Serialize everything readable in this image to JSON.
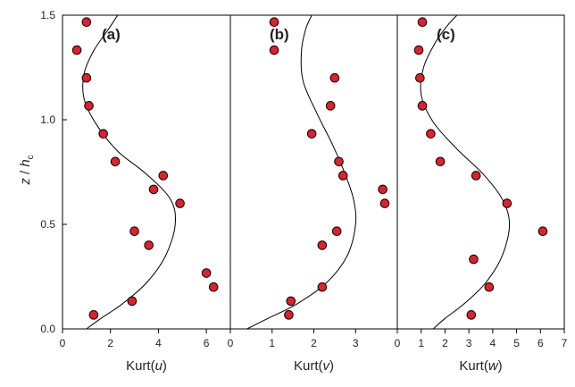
{
  "y_axis": {
    "label_main": "z",
    "label_sep": " / ",
    "label_var": "h",
    "label_sub": "c",
    "ticks": [
      0.0,
      0.5,
      1.0,
      1.5
    ],
    "tick_labels": [
      "0.0",
      "0.5",
      "1.0",
      "1.5"
    ],
    "range": [
      0,
      1.5
    ]
  },
  "colors": {
    "point_fill": "#e0202a",
    "point_stroke": "#000000",
    "curve": "#000000",
    "axes": "#000000"
  },
  "chart_data": [
    {
      "type": "scatter",
      "panel_letter": "(a)",
      "xlabel_prefix": "Kurt(",
      "xlabel_var": "u",
      "xlabel_suffix": ")",
      "xlim": [
        0,
        7
      ],
      "ylim": [
        0,
        1.5
      ],
      "x_ticks": [
        0,
        2,
        4,
        6
      ],
      "x_tick_labels": [
        "0",
        "2",
        "4",
        "6"
      ],
      "points": [
        {
          "x": 1.0,
          "y": 1.467
        },
        {
          "x": 0.6,
          "y": 1.333
        },
        {
          "x": 1.0,
          "y": 1.2
        },
        {
          "x": 1.1,
          "y": 1.067
        },
        {
          "x": 1.7,
          "y": 0.933
        },
        {
          "x": 2.2,
          "y": 0.8
        },
        {
          "x": 4.2,
          "y": 0.733
        },
        {
          "x": 3.8,
          "y": 0.667
        },
        {
          "x": 4.9,
          "y": 0.6
        },
        {
          "x": 3.0,
          "y": 0.467
        },
        {
          "x": 3.6,
          "y": 0.4
        },
        {
          "x": 6.0,
          "y": 0.267
        },
        {
          "x": 6.3,
          "y": 0.2
        },
        {
          "x": 2.9,
          "y": 0.133
        },
        {
          "x": 1.3,
          "y": 0.067
        }
      ],
      "curve": [
        {
          "x": 1.0,
          "y": 0.0
        },
        {
          "x": 1.6,
          "y": 0.05
        },
        {
          "x": 2.5,
          "y": 0.12
        },
        {
          "x": 3.5,
          "y": 0.22
        },
        {
          "x": 4.3,
          "y": 0.35
        },
        {
          "x": 4.7,
          "y": 0.5
        },
        {
          "x": 4.5,
          "y": 0.62
        },
        {
          "x": 3.5,
          "y": 0.74
        },
        {
          "x": 2.3,
          "y": 0.85
        },
        {
          "x": 1.4,
          "y": 0.98
        },
        {
          "x": 0.9,
          "y": 1.1
        },
        {
          "x": 0.9,
          "y": 1.22
        },
        {
          "x": 1.3,
          "y": 1.33
        },
        {
          "x": 1.9,
          "y": 1.43
        },
        {
          "x": 2.3,
          "y": 1.5
        }
      ]
    },
    {
      "type": "scatter",
      "panel_letter": "(b)",
      "xlabel_prefix": "Kurt(",
      "xlabel_var": "v",
      "xlabel_suffix": ")",
      "xlim": [
        0,
        4
      ],
      "ylim": [
        0,
        1.5
      ],
      "x_ticks": [
        0,
        1,
        2,
        3
      ],
      "x_tick_labels": [
        "0",
        "1",
        "2",
        "3"
      ],
      "points": [
        {
          "x": 1.05,
          "y": 1.467
        },
        {
          "x": 1.05,
          "y": 1.333
        },
        {
          "x": 2.5,
          "y": 1.2
        },
        {
          "x": 2.4,
          "y": 1.067
        },
        {
          "x": 1.95,
          "y": 0.933
        },
        {
          "x": 2.6,
          "y": 0.8
        },
        {
          "x": 2.7,
          "y": 0.733
        },
        {
          "x": 3.65,
          "y": 0.667
        },
        {
          "x": 3.7,
          "y": 0.6
        },
        {
          "x": 2.55,
          "y": 0.467
        },
        {
          "x": 2.2,
          "y": 0.4
        },
        {
          "x": 2.2,
          "y": 0.2
        },
        {
          "x": 1.45,
          "y": 0.133
        },
        {
          "x": 1.4,
          "y": 0.067
        }
      ],
      "curve": [
        {
          "x": 0.4,
          "y": 0.0
        },
        {
          "x": 0.9,
          "y": 0.05
        },
        {
          "x": 1.6,
          "y": 0.12
        },
        {
          "x": 2.3,
          "y": 0.22
        },
        {
          "x": 2.8,
          "y": 0.35
        },
        {
          "x": 3.0,
          "y": 0.5
        },
        {
          "x": 2.95,
          "y": 0.62
        },
        {
          "x": 2.75,
          "y": 0.74
        },
        {
          "x": 2.45,
          "y": 0.88
        },
        {
          "x": 2.1,
          "y": 1.02
        },
        {
          "x": 1.75,
          "y": 1.18
        },
        {
          "x": 1.7,
          "y": 1.32
        },
        {
          "x": 1.8,
          "y": 1.43
        },
        {
          "x": 1.95,
          "y": 1.5
        }
      ]
    },
    {
      "type": "scatter",
      "panel_letter": "(c)",
      "xlabel_prefix": "Kurt(",
      "xlabel_var": "w",
      "xlabel_suffix": ")",
      "xlim": [
        0,
        7
      ],
      "ylim": [
        0,
        1.5
      ],
      "x_ticks": [
        0,
        1,
        2,
        3,
        4,
        5,
        6,
        7
      ],
      "x_tick_labels": [
        "0",
        "1",
        "2",
        "3",
        "4",
        "5",
        "6",
        "7"
      ],
      "points": [
        {
          "x": 1.05,
          "y": 1.467
        },
        {
          "x": 0.9,
          "y": 1.333
        },
        {
          "x": 0.95,
          "y": 1.2
        },
        {
          "x": 1.05,
          "y": 1.067
        },
        {
          "x": 1.4,
          "y": 0.933
        },
        {
          "x": 1.8,
          "y": 0.8
        },
        {
          "x": 3.3,
          "y": 0.733
        },
        {
          "x": 4.6,
          "y": 0.6
        },
        {
          "x": 6.1,
          "y": 0.467
        },
        {
          "x": 3.2,
          "y": 0.333
        },
        {
          "x": 3.85,
          "y": 0.2
        },
        {
          "x": 3.1,
          "y": 0.067
        }
      ],
      "curve": [
        {
          "x": 1.5,
          "y": 0.0
        },
        {
          "x": 2.0,
          "y": 0.05
        },
        {
          "x": 2.8,
          "y": 0.12
        },
        {
          "x": 3.7,
          "y": 0.22
        },
        {
          "x": 4.4,
          "y": 0.35
        },
        {
          "x": 4.7,
          "y": 0.5
        },
        {
          "x": 4.4,
          "y": 0.62
        },
        {
          "x": 3.6,
          "y": 0.74
        },
        {
          "x": 2.5,
          "y": 0.86
        },
        {
          "x": 1.5,
          "y": 0.99
        },
        {
          "x": 1.0,
          "y": 1.12
        },
        {
          "x": 1.1,
          "y": 1.25
        },
        {
          "x": 1.6,
          "y": 1.37
        },
        {
          "x": 2.1,
          "y": 1.45
        },
        {
          "x": 2.5,
          "y": 1.5
        }
      ]
    }
  ]
}
